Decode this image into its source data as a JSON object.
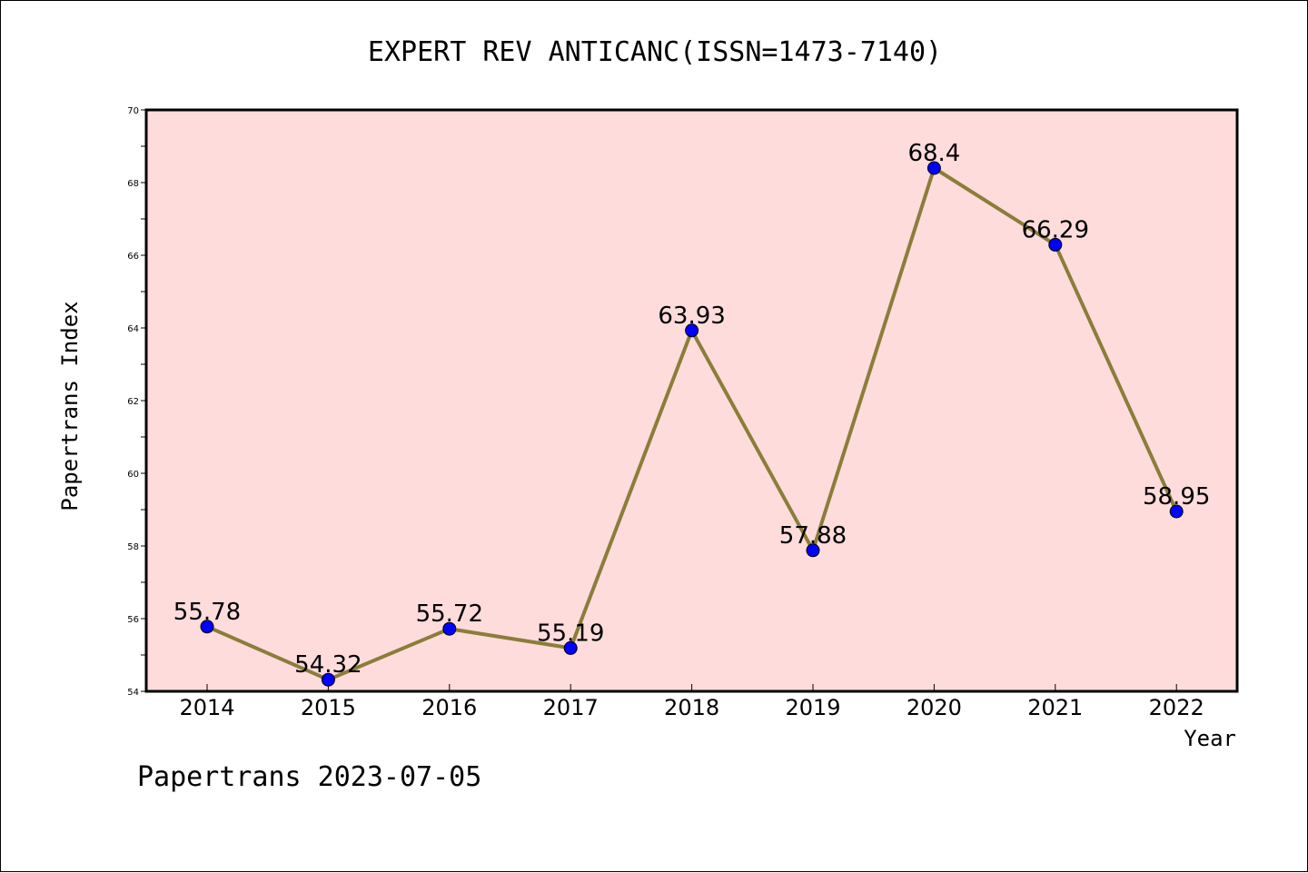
{
  "chart_data": {
    "type": "line",
    "title": "EXPERT REV ANTICANC(ISSN=1473-7140)",
    "xlabel": "Year",
    "ylabel": "Papertrans Index",
    "categories": [
      "2014",
      "2015",
      "2016",
      "2017",
      "2018",
      "2019",
      "2020",
      "2021",
      "2022"
    ],
    "values": [
      55.78,
      54.32,
      55.72,
      55.19,
      63.93,
      57.88,
      68.4,
      66.29,
      58.95
    ],
    "labels": [
      "55.78",
      "54.32",
      "55.72",
      "55.19",
      "63.93",
      "57.88",
      "68.4",
      "66.29",
      "58.95"
    ],
    "ylim": [
      54,
      70
    ],
    "yticks": [
      "54",
      "56",
      "58",
      "60",
      "62",
      "64",
      "66",
      "68",
      "70"
    ],
    "grid": false,
    "colors": {
      "plot_background": "#ffdcdc",
      "line": "#8b7d3a",
      "marker": "#0000ff"
    }
  },
  "footer": "Papertrans 2023-07-05"
}
